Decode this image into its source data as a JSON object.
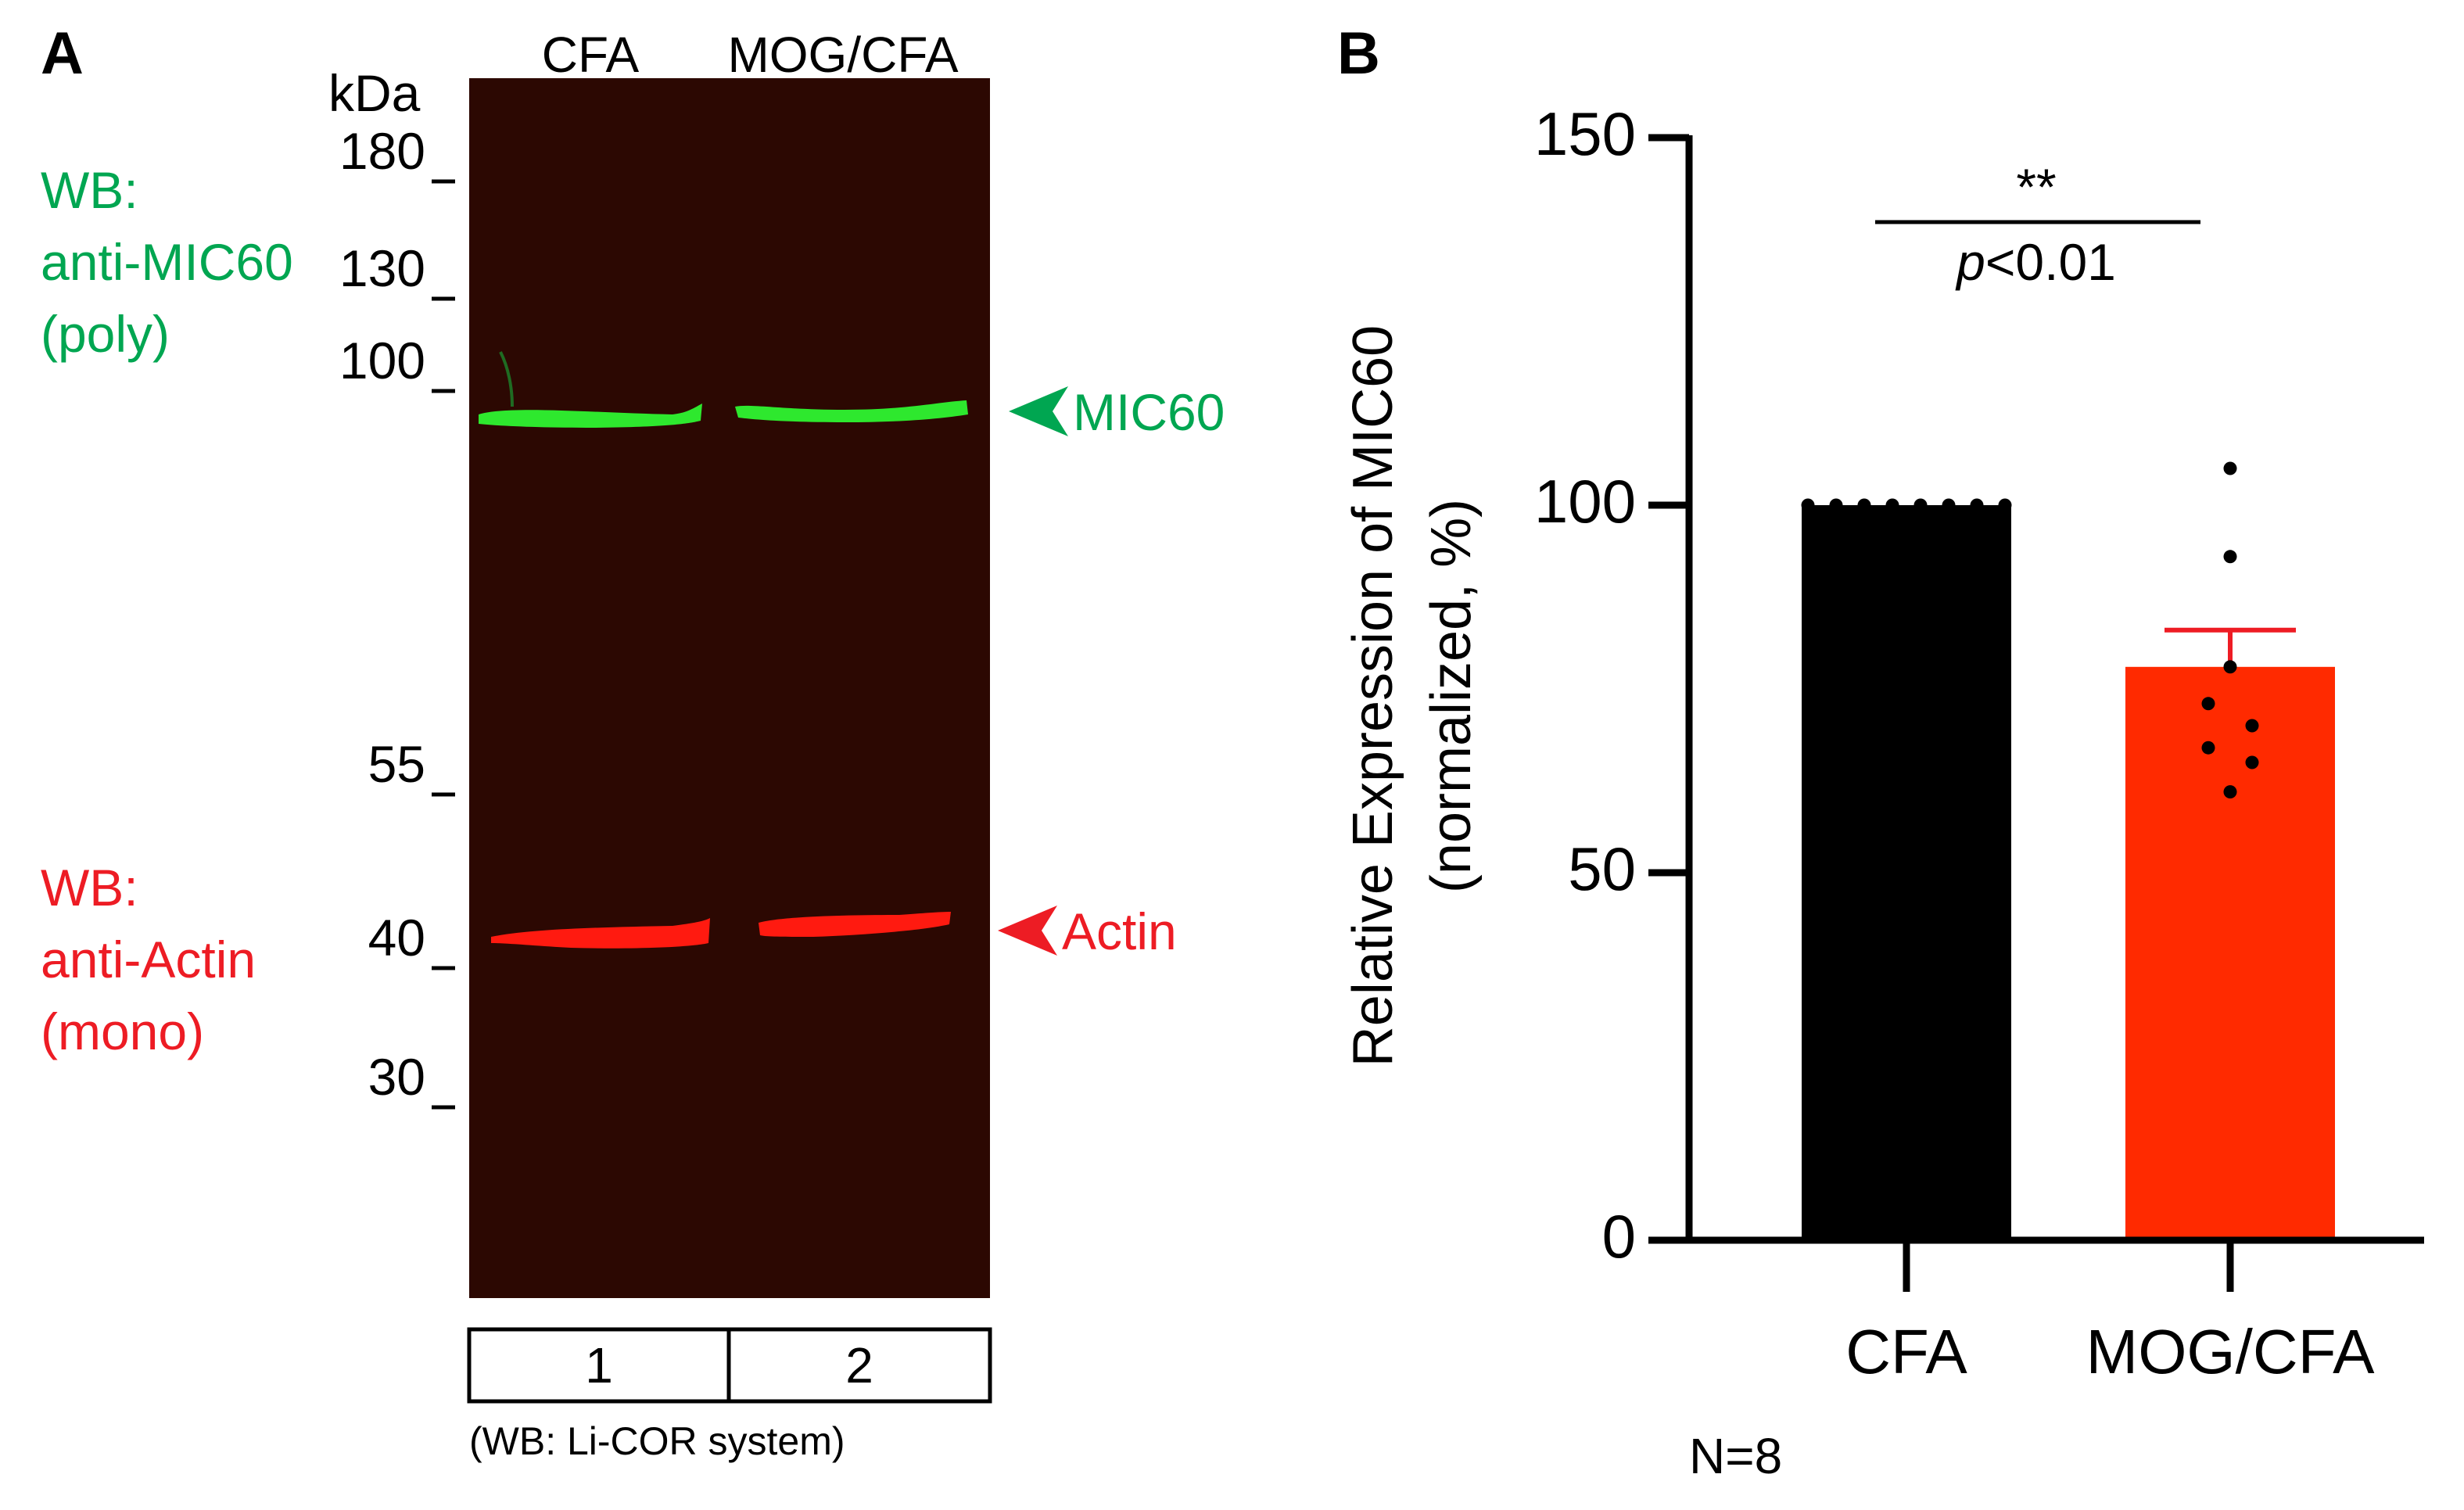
{
  "panel_a": {
    "letter": "A",
    "unit_label": "kDa",
    "lane_headers": [
      "CFA",
      "MOG/CFA"
    ],
    "markers": [
      "180",
      "130",
      "100",
      "55",
      "40",
      "30"
    ],
    "marker_kda": [
      180,
      130,
      100,
      55,
      40,
      30
    ],
    "wb_green_lines": [
      "WB:",
      "anti-MIC60",
      "(poly)"
    ],
    "wb_red_lines": [
      "WB:",
      "anti-Actin",
      "(mono)"
    ],
    "band_labels": {
      "mic60": "MIC60",
      "actin": "Actin"
    },
    "lane_numbers": [
      "1",
      "2"
    ],
    "footnote": "(WB: Li-COR system)",
    "colors": {
      "blot_background": "#2c0802",
      "green": "#00a651",
      "band_green": "#2ee82e",
      "red": "#ed1c24",
      "band_red": "#ff1a10"
    }
  },
  "panel_b": {
    "letter": "B",
    "significance_stars": "**",
    "significance_p_italic": "p",
    "significance_p_rest": "<0.01",
    "n_label": "N=8",
    "colors": {
      "bar1": "#000000",
      "bar2": "#ff2a00",
      "error": "#ee1c24",
      "points": "#000000"
    }
  },
  "chart_data": {
    "type": "bar",
    "title": "",
    "xlabel": "",
    "ylabel_lines": [
      "Relative Expression of MIC60",
      "(normalized, %)"
    ],
    "categories": [
      "CFA",
      "MOG/CFA"
    ],
    "values": [
      100,
      78
    ],
    "error_upper": [
      0,
      5
    ],
    "points": [
      [
        100,
        100,
        100,
        100,
        100,
        100,
        100,
        100
      ],
      [
        105,
        93,
        78,
        73,
        70,
        67,
        65,
        61
      ]
    ],
    "ylim": [
      0,
      150
    ],
    "yticks": [
      0,
      50,
      100,
      150
    ]
  }
}
